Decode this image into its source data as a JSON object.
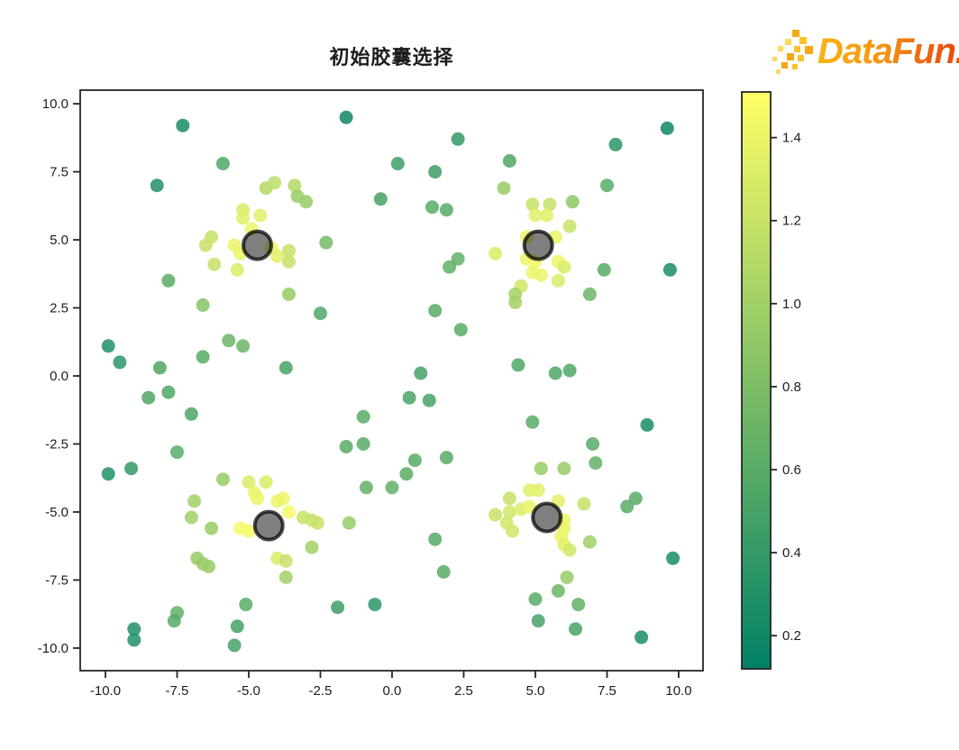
{
  "logo": {
    "text": "DataFun.",
    "color_start": "#f7b414",
    "color_end": "#e8430e",
    "pixel_colors": [
      "#f6a713",
      "#f8c32a",
      "#fbd95c"
    ]
  },
  "chart_data": {
    "type": "scatter",
    "title": "初始胶囊选择",
    "xlabel": "",
    "ylabel": "",
    "grid": false,
    "legend": "none",
    "xlim": [
      -10.88,
      10.85
    ],
    "ylim": [
      -10.83,
      10.5
    ],
    "x_ticks": [
      -10.0,
      -7.5,
      -5.0,
      -2.5,
      0.0,
      2.5,
      5.0,
      7.5,
      10.0
    ],
    "y_ticks": [
      -10.0,
      -7.5,
      -5.0,
      -2.5,
      0.0,
      2.5,
      5.0,
      7.5,
      10.0
    ],
    "colorbar": {
      "min": 0.12,
      "max": 1.51,
      "ticks": [
        0.2,
        0.4,
        0.6,
        0.8,
        1.0,
        1.2,
        1.4
      ],
      "cmap": "summer",
      "cmap_stops": [
        "#008066",
        "#80bf66",
        "#ffff66"
      ]
    },
    "marker": {
      "point_radius": 7.5,
      "point_opacity": 0.85,
      "center_radius": 15.5,
      "center_fill": "rgba(0,0,0,0.50)",
      "center_edge": "rgba(0,0,0,0.72)",
      "center_edge_width": 4
    },
    "centers": [
      [
        -4.7,
        4.8
      ],
      [
        5.1,
        4.8
      ],
      [
        -4.3,
        -5.5
      ],
      [
        5.4,
        -5.2
      ]
    ],
    "points": [
      [
        -7.3,
        9.2,
        0.25
      ],
      [
        -1.6,
        9.5,
        0.2
      ],
      [
        -5.9,
        7.8,
        0.55
      ],
      [
        -8.2,
        7.0,
        0.3
      ],
      [
        0.2,
        7.8,
        0.45
      ],
      [
        -0.4,
        6.5,
        0.5
      ],
      [
        -4.4,
        6.9,
        1.1
      ],
      [
        -4.1,
        7.1,
        1.15
      ],
      [
        -3.4,
        7.0,
        1.1
      ],
      [
        -3.3,
        6.6,
        0.95
      ],
      [
        -3.0,
        6.4,
        0.95
      ],
      [
        -5.2,
        6.1,
        1.3
      ],
      [
        -5.2,
        5.8,
        1.35
      ],
      [
        -4.6,
        5.9,
        1.35
      ],
      [
        -4.9,
        5.4,
        1.4
      ],
      [
        -6.3,
        5.1,
        1.2
      ],
      [
        -6.5,
        4.8,
        1.2
      ],
      [
        -5.5,
        4.8,
        1.4
      ],
      [
        -5.3,
        4.5,
        1.4
      ],
      [
        -6.2,
        4.1,
        1.2
      ],
      [
        -4.2,
        4.7,
        1.4
      ],
      [
        -4.0,
        4.4,
        1.35
      ],
      [
        -3.6,
        4.6,
        1.2
      ],
      [
        -3.6,
        4.2,
        1.2
      ],
      [
        -5.4,
        3.9,
        1.3
      ],
      [
        -2.3,
        4.9,
        0.75
      ],
      [
        -7.8,
        3.5,
        0.6
      ],
      [
        -6.6,
        2.6,
        0.85
      ],
      [
        -3.6,
        3.0,
        0.95
      ],
      [
        -2.5,
        2.3,
        0.55
      ],
      [
        -9.9,
        1.1,
        0.3
      ],
      [
        -9.5,
        0.5,
        0.35
      ],
      [
        -8.1,
        0.3,
        0.55
      ],
      [
        -5.7,
        1.3,
        0.7
      ],
      [
        -5.2,
        1.1,
        0.7
      ],
      [
        -6.6,
        0.7,
        0.6
      ],
      [
        -3.7,
        0.3,
        0.5
      ],
      [
        9.6,
        9.1,
        0.2
      ],
      [
        2.3,
        8.7,
        0.4
      ],
      [
        7.8,
        8.5,
        0.35
      ],
      [
        1.5,
        7.5,
        0.45
      ],
      [
        4.1,
        7.9,
        0.55
      ],
      [
        3.9,
        6.9,
        0.95
      ],
      [
        7.5,
        7.0,
        0.6
      ],
      [
        1.4,
        6.2,
        0.6
      ],
      [
        1.9,
        6.1,
        0.6
      ],
      [
        6.3,
        6.4,
        0.9
      ],
      [
        4.9,
        6.3,
        1.2
      ],
      [
        5.5,
        6.3,
        1.2
      ],
      [
        5.0,
        5.9,
        1.35
      ],
      [
        5.4,
        5.9,
        1.35
      ],
      [
        6.2,
        5.5,
        1.2
      ],
      [
        4.7,
        5.1,
        1.4
      ],
      [
        5.7,
        5.1,
        1.4
      ],
      [
        4.7,
        4.3,
        1.4
      ],
      [
        5.0,
        4.2,
        1.45
      ],
      [
        5.8,
        4.2,
        1.4
      ],
      [
        6.0,
        4.0,
        1.3
      ],
      [
        4.9,
        3.8,
        1.4
      ],
      [
        5.2,
        3.7,
        1.4
      ],
      [
        5.8,
        3.5,
        1.3
      ],
      [
        3.6,
        4.5,
        1.3
      ],
      [
        4.5,
        3.3,
        1.25
      ],
      [
        4.3,
        3.0,
        1.0
      ],
      [
        4.3,
        2.7,
        1.0
      ],
      [
        2.0,
        4.0,
        0.65
      ],
      [
        2.3,
        4.3,
        0.65
      ],
      [
        7.4,
        3.9,
        0.6
      ],
      [
        9.7,
        3.9,
        0.25
      ],
      [
        6.9,
        3.0,
        0.7
      ],
      [
        1.5,
        2.4,
        0.6
      ],
      [
        2.4,
        1.7,
        0.6
      ],
      [
        1.0,
        0.1,
        0.5
      ],
      [
        4.4,
        0.4,
        0.55
      ],
      [
        5.7,
        0.1,
        0.55
      ],
      [
        6.2,
        0.2,
        0.55
      ],
      [
        -8.5,
        -0.8,
        0.55
      ],
      [
        -7.8,
        -0.6,
        0.55
      ],
      [
        -7.0,
        -1.4,
        0.55
      ],
      [
        -7.5,
        -2.8,
        0.6
      ],
      [
        -9.9,
        -3.6,
        0.3
      ],
      [
        -9.1,
        -3.4,
        0.4
      ],
      [
        -1.0,
        -1.5,
        0.6
      ],
      [
        -1.6,
        -2.6,
        0.6
      ],
      [
        -1.0,
        -2.5,
        0.6
      ],
      [
        -0.9,
        -4.1,
        0.65
      ],
      [
        0.0,
        -4.1,
        0.65
      ],
      [
        -5.9,
        -3.8,
        0.95
      ],
      [
        -5.0,
        -3.9,
        1.3
      ],
      [
        -4.4,
        -3.9,
        1.3
      ],
      [
        -4.8,
        -4.3,
        1.4
      ],
      [
        -4.7,
        -4.5,
        1.4
      ],
      [
        -4.0,
        -4.6,
        1.4
      ],
      [
        -3.8,
        -4.5,
        1.4
      ],
      [
        -3.6,
        -5.0,
        1.45
      ],
      [
        -3.1,
        -5.2,
        1.2
      ],
      [
        -2.8,
        -5.3,
        1.2
      ],
      [
        -2.6,
        -5.4,
        1.2
      ],
      [
        -5.3,
        -5.6,
        1.45
      ],
      [
        -5.0,
        -5.7,
        1.45
      ],
      [
        -1.5,
        -5.4,
        0.95
      ],
      [
        -2.8,
        -6.3,
        1.0
      ],
      [
        -4.0,
        -6.7,
        1.3
      ],
      [
        -3.7,
        -6.8,
        1.2
      ],
      [
        -3.7,
        -7.4,
        1.0
      ],
      [
        -6.9,
        -4.6,
        1.0
      ],
      [
        -7.0,
        -5.2,
        1.0
      ],
      [
        -6.3,
        -5.6,
        0.95
      ],
      [
        -6.8,
        -6.7,
        0.95
      ],
      [
        -6.6,
        -6.9,
        0.95
      ],
      [
        -6.4,
        -7.0,
        0.95
      ],
      [
        -5.1,
        -8.4,
        0.6
      ],
      [
        -7.5,
        -8.7,
        0.65
      ],
      [
        -7.6,
        -9.0,
        0.6
      ],
      [
        -9.0,
        -9.3,
        0.3
      ],
      [
        -9.0,
        -9.7,
        0.3
      ],
      [
        -5.4,
        -9.2,
        0.5
      ],
      [
        -5.5,
        -9.9,
        0.5
      ],
      [
        -1.9,
        -8.5,
        0.45
      ],
      [
        -0.6,
        -8.4,
        0.35
      ],
      [
        0.6,
        -0.8,
        0.5
      ],
      [
        1.3,
        -0.9,
        0.5
      ],
      [
        4.9,
        -1.7,
        0.6
      ],
      [
        8.9,
        -1.8,
        0.25
      ],
      [
        7.0,
        -2.5,
        0.6
      ],
      [
        0.8,
        -3.1,
        0.6
      ],
      [
        1.9,
        -3.0,
        0.6
      ],
      [
        0.5,
        -3.6,
        0.6
      ],
      [
        5.2,
        -3.4,
        0.95
      ],
      [
        6.0,
        -3.4,
        0.95
      ],
      [
        7.1,
        -3.2,
        0.65
      ],
      [
        4.1,
        -4.5,
        1.2
      ],
      [
        4.8,
        -4.2,
        1.35
      ],
      [
        5.1,
        -4.2,
        1.35
      ],
      [
        5.8,
        -4.6,
        1.35
      ],
      [
        3.6,
        -5.1,
        1.2
      ],
      [
        4.1,
        -5.0,
        1.25
      ],
      [
        4.5,
        -4.9,
        1.3
      ],
      [
        4.8,
        -4.8,
        1.4
      ],
      [
        4.0,
        -5.4,
        1.25
      ],
      [
        4.2,
        -5.7,
        1.25
      ],
      [
        6.0,
        -5.3,
        1.4
      ],
      [
        6.0,
        -5.6,
        1.4
      ],
      [
        5.9,
        -5.9,
        1.4
      ],
      [
        6.0,
        -6.2,
        1.35
      ],
      [
        6.2,
        -6.4,
        1.25
      ],
      [
        6.7,
        -4.7,
        1.2
      ],
      [
        6.9,
        -6.1,
        1.0
      ],
      [
        8.2,
        -4.8,
        0.6
      ],
      [
        8.5,
        -4.5,
        0.6
      ],
      [
        1.5,
        -6.0,
        0.6
      ],
      [
        1.8,
        -7.2,
        0.6
      ],
      [
        9.8,
        -6.7,
        0.25
      ],
      [
        6.1,
        -7.4,
        0.95
      ],
      [
        5.8,
        -7.9,
        0.7
      ],
      [
        5.0,
        -8.2,
        0.6
      ],
      [
        6.5,
        -8.4,
        0.65
      ],
      [
        5.1,
        -9.0,
        0.5
      ],
      [
        6.4,
        -9.3,
        0.5
      ],
      [
        8.7,
        -9.6,
        0.25
      ]
    ]
  }
}
